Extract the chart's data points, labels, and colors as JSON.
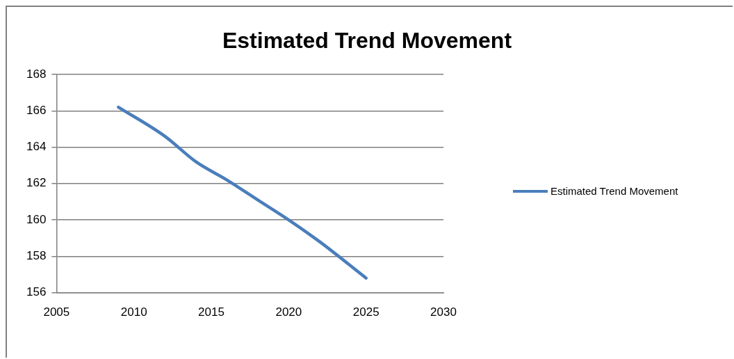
{
  "chart_data": {
    "type": "line",
    "title": "Estimated Trend Movement",
    "x": [
      2009,
      2012,
      2014,
      2016,
      2018,
      2020,
      2022,
      2025
    ],
    "series": [
      {
        "name": "Estimated Trend Movement",
        "color": "#4a7ebb",
        "values": [
          166.2,
          164.6,
          163.2,
          162.2,
          161.1,
          160.0,
          158.8,
          156.8
        ]
      }
    ],
    "xlim": [
      2005,
      2030
    ],
    "xticks": [
      2005,
      2010,
      2015,
      2020,
      2025,
      2030
    ],
    "ylim": [
      156,
      168
    ],
    "yticks": [
      156,
      158,
      160,
      162,
      164,
      166,
      168
    ],
    "grid": "y",
    "legend": "right",
    "marker": "none",
    "line_style": "solid"
  }
}
